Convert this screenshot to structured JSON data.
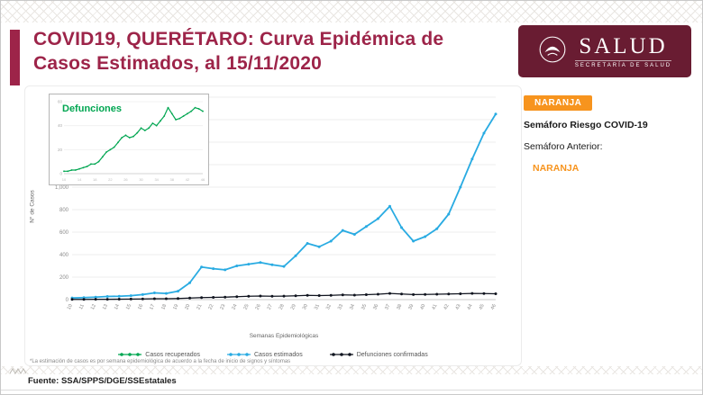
{
  "page": {
    "title_line1": "COVID19, QUERÉTARO: Curva Epidémica de",
    "title_line2": "Casos Estimados, al 15/11/2020",
    "footnote": "*La estimación de casos es por semana epidemiológica de acuerdo a la fecha de inicio de signos y síntomas",
    "source": "Fuente: SSA/SPPS/DGE/SSEstatales"
  },
  "logo": {
    "name": "SALUD",
    "subtitle": "SECRETARÍA DE SALUD"
  },
  "status_panel": {
    "badge": "NARANJA",
    "risk_label": "Semáforo Riesgo COVID-19",
    "previous_label": "Semáforo Anterior:",
    "previous_value": "NARANJA"
  },
  "colors": {
    "maroon": "#691C32",
    "title_red": "#9D2449",
    "orange": "#F7941E",
    "blue": "#29ABE2",
    "green": "#00A651",
    "dark": "#10141F"
  },
  "chart_data": {
    "type": "line",
    "title": "",
    "xlabel": "Semanas Epidemiológicas",
    "ylabel": "N° de Casos",
    "ylim": [
      0,
      1800
    ],
    "ytick_step": 200,
    "grid": true,
    "legend_position": "bottom",
    "x": [
      10,
      11,
      12,
      13,
      14,
      15,
      16,
      17,
      18,
      19,
      20,
      21,
      22,
      23,
      24,
      25,
      26,
      27,
      28,
      29,
      30,
      31,
      32,
      33,
      34,
      35,
      36,
      37,
      38,
      39,
      40,
      41,
      42,
      43,
      44,
      45,
      46
    ],
    "series": [
      {
        "name": "Casos recuperados",
        "color": "#00A651",
        "values": []
      },
      {
        "name": "Casos estimados",
        "color": "#29ABE2",
        "values": [
          15,
          18,
          22,
          28,
          30,
          35,
          45,
          60,
          55,
          75,
          150,
          290,
          275,
          265,
          300,
          315,
          330,
          310,
          295,
          390,
          500,
          470,
          520,
          615,
          580,
          650,
          720,
          830,
          640,
          520,
          560,
          630,
          760,
          1000,
          1250,
          1480,
          1650
        ]
      },
      {
        "name": "Defunciones confirmadas",
        "color": "#10141F",
        "values": [
          2,
          2,
          3,
          3,
          4,
          5,
          6,
          8,
          8,
          10,
          14,
          18,
          20,
          22,
          26,
          30,
          32,
          30,
          31,
          34,
          38,
          36,
          38,
          42,
          40,
          44,
          48,
          55,
          50,
          45,
          46,
          48,
          50,
          52,
          55,
          54,
          52
        ]
      }
    ],
    "inset": {
      "title": "Defunciones",
      "color": "#00A651",
      "ylim": [
        0,
        60
      ],
      "ytick_step": 20,
      "values": [
        2,
        2,
        3,
        3,
        4,
        5,
        6,
        8,
        8,
        10,
        14,
        18,
        20,
        22,
        26,
        30,
        32,
        30,
        31,
        34,
        38,
        36,
        38,
        42,
        40,
        44,
        48,
        55,
        50,
        45,
        46,
        48,
        50,
        52,
        55,
        54,
        52
      ]
    }
  }
}
